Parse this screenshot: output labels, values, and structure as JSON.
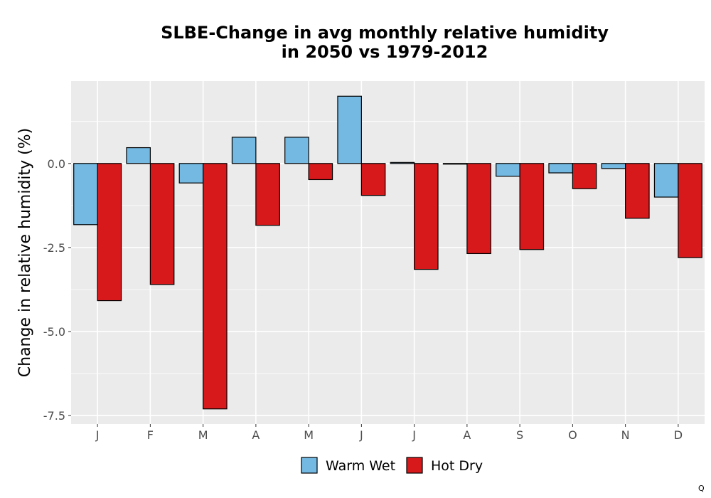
{
  "chart_data": {
    "type": "bar",
    "title_line1": "SLBE-Change in avg monthly relative humidity",
    "title_line2": "in 2050 vs 1979-2012",
    "xlabel": "",
    "ylabel": "Change in relative humidity (%)",
    "categories": [
      "J",
      "F",
      "M",
      "A",
      "M",
      "J",
      "J",
      "A",
      "S",
      "O",
      "N",
      "D"
    ],
    "series": [
      {
        "name": "Warm Wet",
        "color": "#74b9e2",
        "values": [
          -1.82,
          0.47,
          -0.58,
          0.78,
          0.78,
          2.0,
          0.03,
          -0.02,
          -0.38,
          -0.28,
          -0.15,
          -1.0
        ]
      },
      {
        "name": "Hot Dry",
        "color": "#d7191c",
        "values": [
          -4.08,
          -3.6,
          -7.3,
          -1.84,
          -0.48,
          -0.95,
          -3.15,
          -2.68,
          -2.56,
          -0.75,
          -1.63,
          -2.8
        ]
      }
    ],
    "ylim": [
      -7.75,
      2.45
    ],
    "yticks": [
      0.0,
      -2.5,
      -5.0,
      -7.5
    ],
    "ytick_labels": [
      "0.0",
      "-2.5",
      "-5.0",
      "-7.5"
    ],
    "grid": true,
    "legend_position": "bottom"
  },
  "corner_mark": "Q"
}
